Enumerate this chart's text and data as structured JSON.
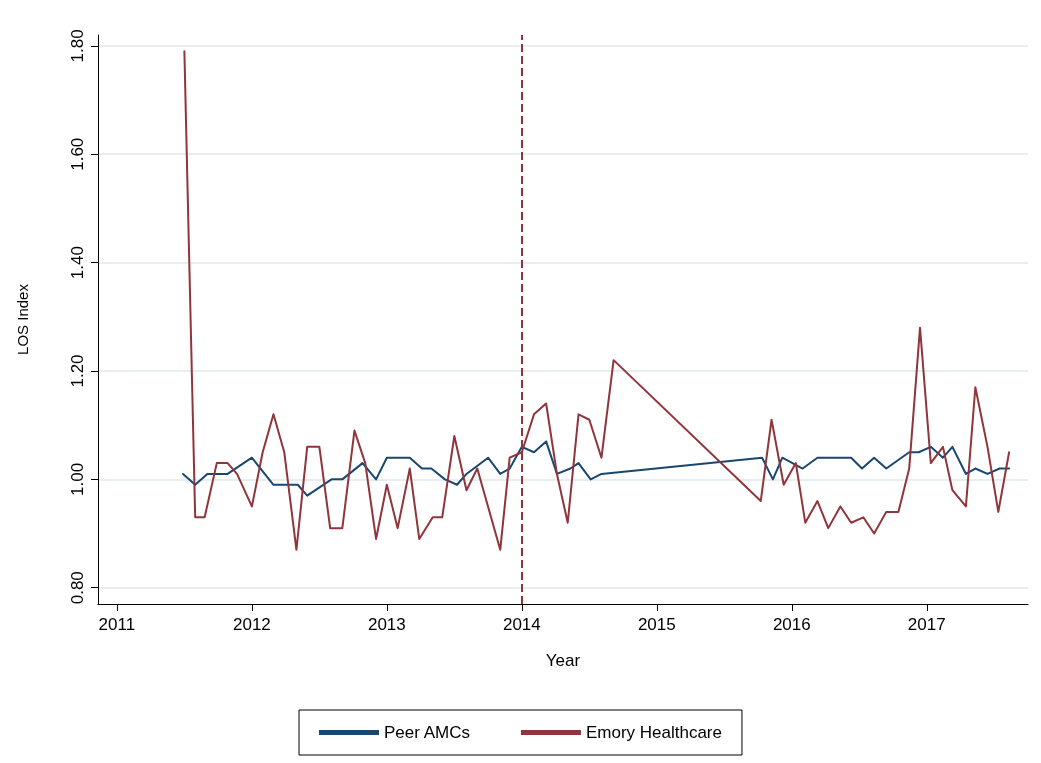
{
  "chart_data": {
    "type": "line",
    "xlabel": "Year",
    "ylabel": "LOS Index",
    "xlim": [
      2010.86,
      2017.75
    ],
    "ylim": [
      0.77,
      1.82
    ],
    "xticks": [
      2011,
      2012,
      2013,
      2014,
      2015,
      2016,
      2017
    ],
    "yticks": [
      {
        "value": 0.8,
        "label": "0.80"
      },
      {
        "value": 1,
        "label": "1.00"
      },
      {
        "value": 1.2,
        "label": "1.20"
      },
      {
        "value": 1.4,
        "label": "1.40"
      },
      {
        "value": 1.6,
        "label": "1.60"
      },
      {
        "value": 1.8,
        "label": "1.80"
      }
    ],
    "grid": "y",
    "legend": "bottom",
    "marker": "none",
    "line_style": "solid",
    "ref_lines": [
      {
        "axis": "x",
        "value": 2014,
        "color": "#90353b",
        "line_style": "dashed"
      }
    ],
    "series": [
      {
        "name": "Peer AMCs",
        "color": "#1a476f",
        "x": [
          2011.49,
          2011.58,
          2011.67,
          2011.82,
          2012.0,
          2012.16,
          2012.34,
          2012.41,
          2012.59,
          2012.67,
          2012.82,
          2012.92,
          2013.0,
          2013.08,
          2013.17,
          2013.26,
          2013.33,
          2013.43,
          2013.52,
          2013.59,
          2013.75,
          2013.84,
          2013.91,
          2014.0,
          2014.09,
          2014.18,
          2014.26,
          2014.36,
          2014.42,
          2014.51,
          2014.59,
          2015.78,
          2015.86,
          2015.93,
          2016.08,
          2016.19,
          2016.27,
          2016.44,
          2016.52,
          2016.61,
          2016.7,
          2016.87,
          2016.94,
          2017.03,
          2017.12,
          2017.19,
          2017.29,
          2017.36,
          2017.45,
          2017.54,
          2017.61
        ],
        "values": [
          1.01,
          0.99,
          1.01,
          1.01,
          1.04,
          0.99,
          0.99,
          0.97,
          1.0,
          1.0,
          1.03,
          1.0,
          1.04,
          1.04,
          1.04,
          1.02,
          1.02,
          1.0,
          0.99,
          1.01,
          1.04,
          1.01,
          1.02,
          1.06,
          1.05,
          1.07,
          1.01,
          1.02,
          1.03,
          1.0,
          1.01,
          1.04,
          1.0,
          1.04,
          1.02,
          1.04,
          1.04,
          1.04,
          1.02,
          1.04,
          1.02,
          1.05,
          1.05,
          1.06,
          1.04,
          1.06,
          1.01,
          1.02,
          1.01,
          1.02,
          1.02
        ]
      },
      {
        "name": "Emory Healthcare",
        "color": "#90353b",
        "x": [
          2011.5,
          2011.58,
          2011.65,
          2011.74,
          2011.82,
          2011.89,
          2012.0,
          2012.08,
          2012.16,
          2012.24,
          2012.33,
          2012.41,
          2012.5,
          2012.58,
          2012.67,
          2012.76,
          2012.84,
          2012.92,
          2013.0,
          2013.08,
          2013.17,
          2013.24,
          2013.34,
          2013.41,
          2013.5,
          2013.59,
          2013.67,
          2013.84,
          2013.91,
          2014.0,
          2014.09,
          2014.18,
          2014.26,
          2014.34,
          2014.42,
          2014.5,
          2014.59,
          2014.68,
          2015.77,
          2015.85,
          2015.94,
          2016.03,
          2016.1,
          2016.19,
          2016.27,
          2016.36,
          2016.44,
          2016.53,
          2016.61,
          2016.7,
          2016.79,
          2016.87,
          2016.95,
          2017.03,
          2017.12,
          2017.19,
          2017.29,
          2017.36,
          2017.45,
          2017.53,
          2017.61
        ],
        "values": [
          1.79,
          0.93,
          0.93,
          1.03,
          1.03,
          1.01,
          0.95,
          1.05,
          1.12,
          1.05,
          0.87,
          1.06,
          1.06,
          0.91,
          0.91,
          1.09,
          1.03,
          0.89,
          0.99,
          0.91,
          1.02,
          0.89,
          0.93,
          0.93,
          1.08,
          0.98,
          1.02,
          0.87,
          1.04,
          1.05,
          1.12,
          1.14,
          1.01,
          0.92,
          1.12,
          1.11,
          1.04,
          1.22,
          0.96,
          1.11,
          0.99,
          1.03,
          0.92,
          0.96,
          0.91,
          0.95,
          0.92,
          0.93,
          0.9,
          0.94,
          0.94,
          1.02,
          1.28,
          1.03,
          1.06,
          0.98,
          0.95,
          1.17,
          1.06,
          0.94,
          1.05
        ]
      }
    ]
  }
}
